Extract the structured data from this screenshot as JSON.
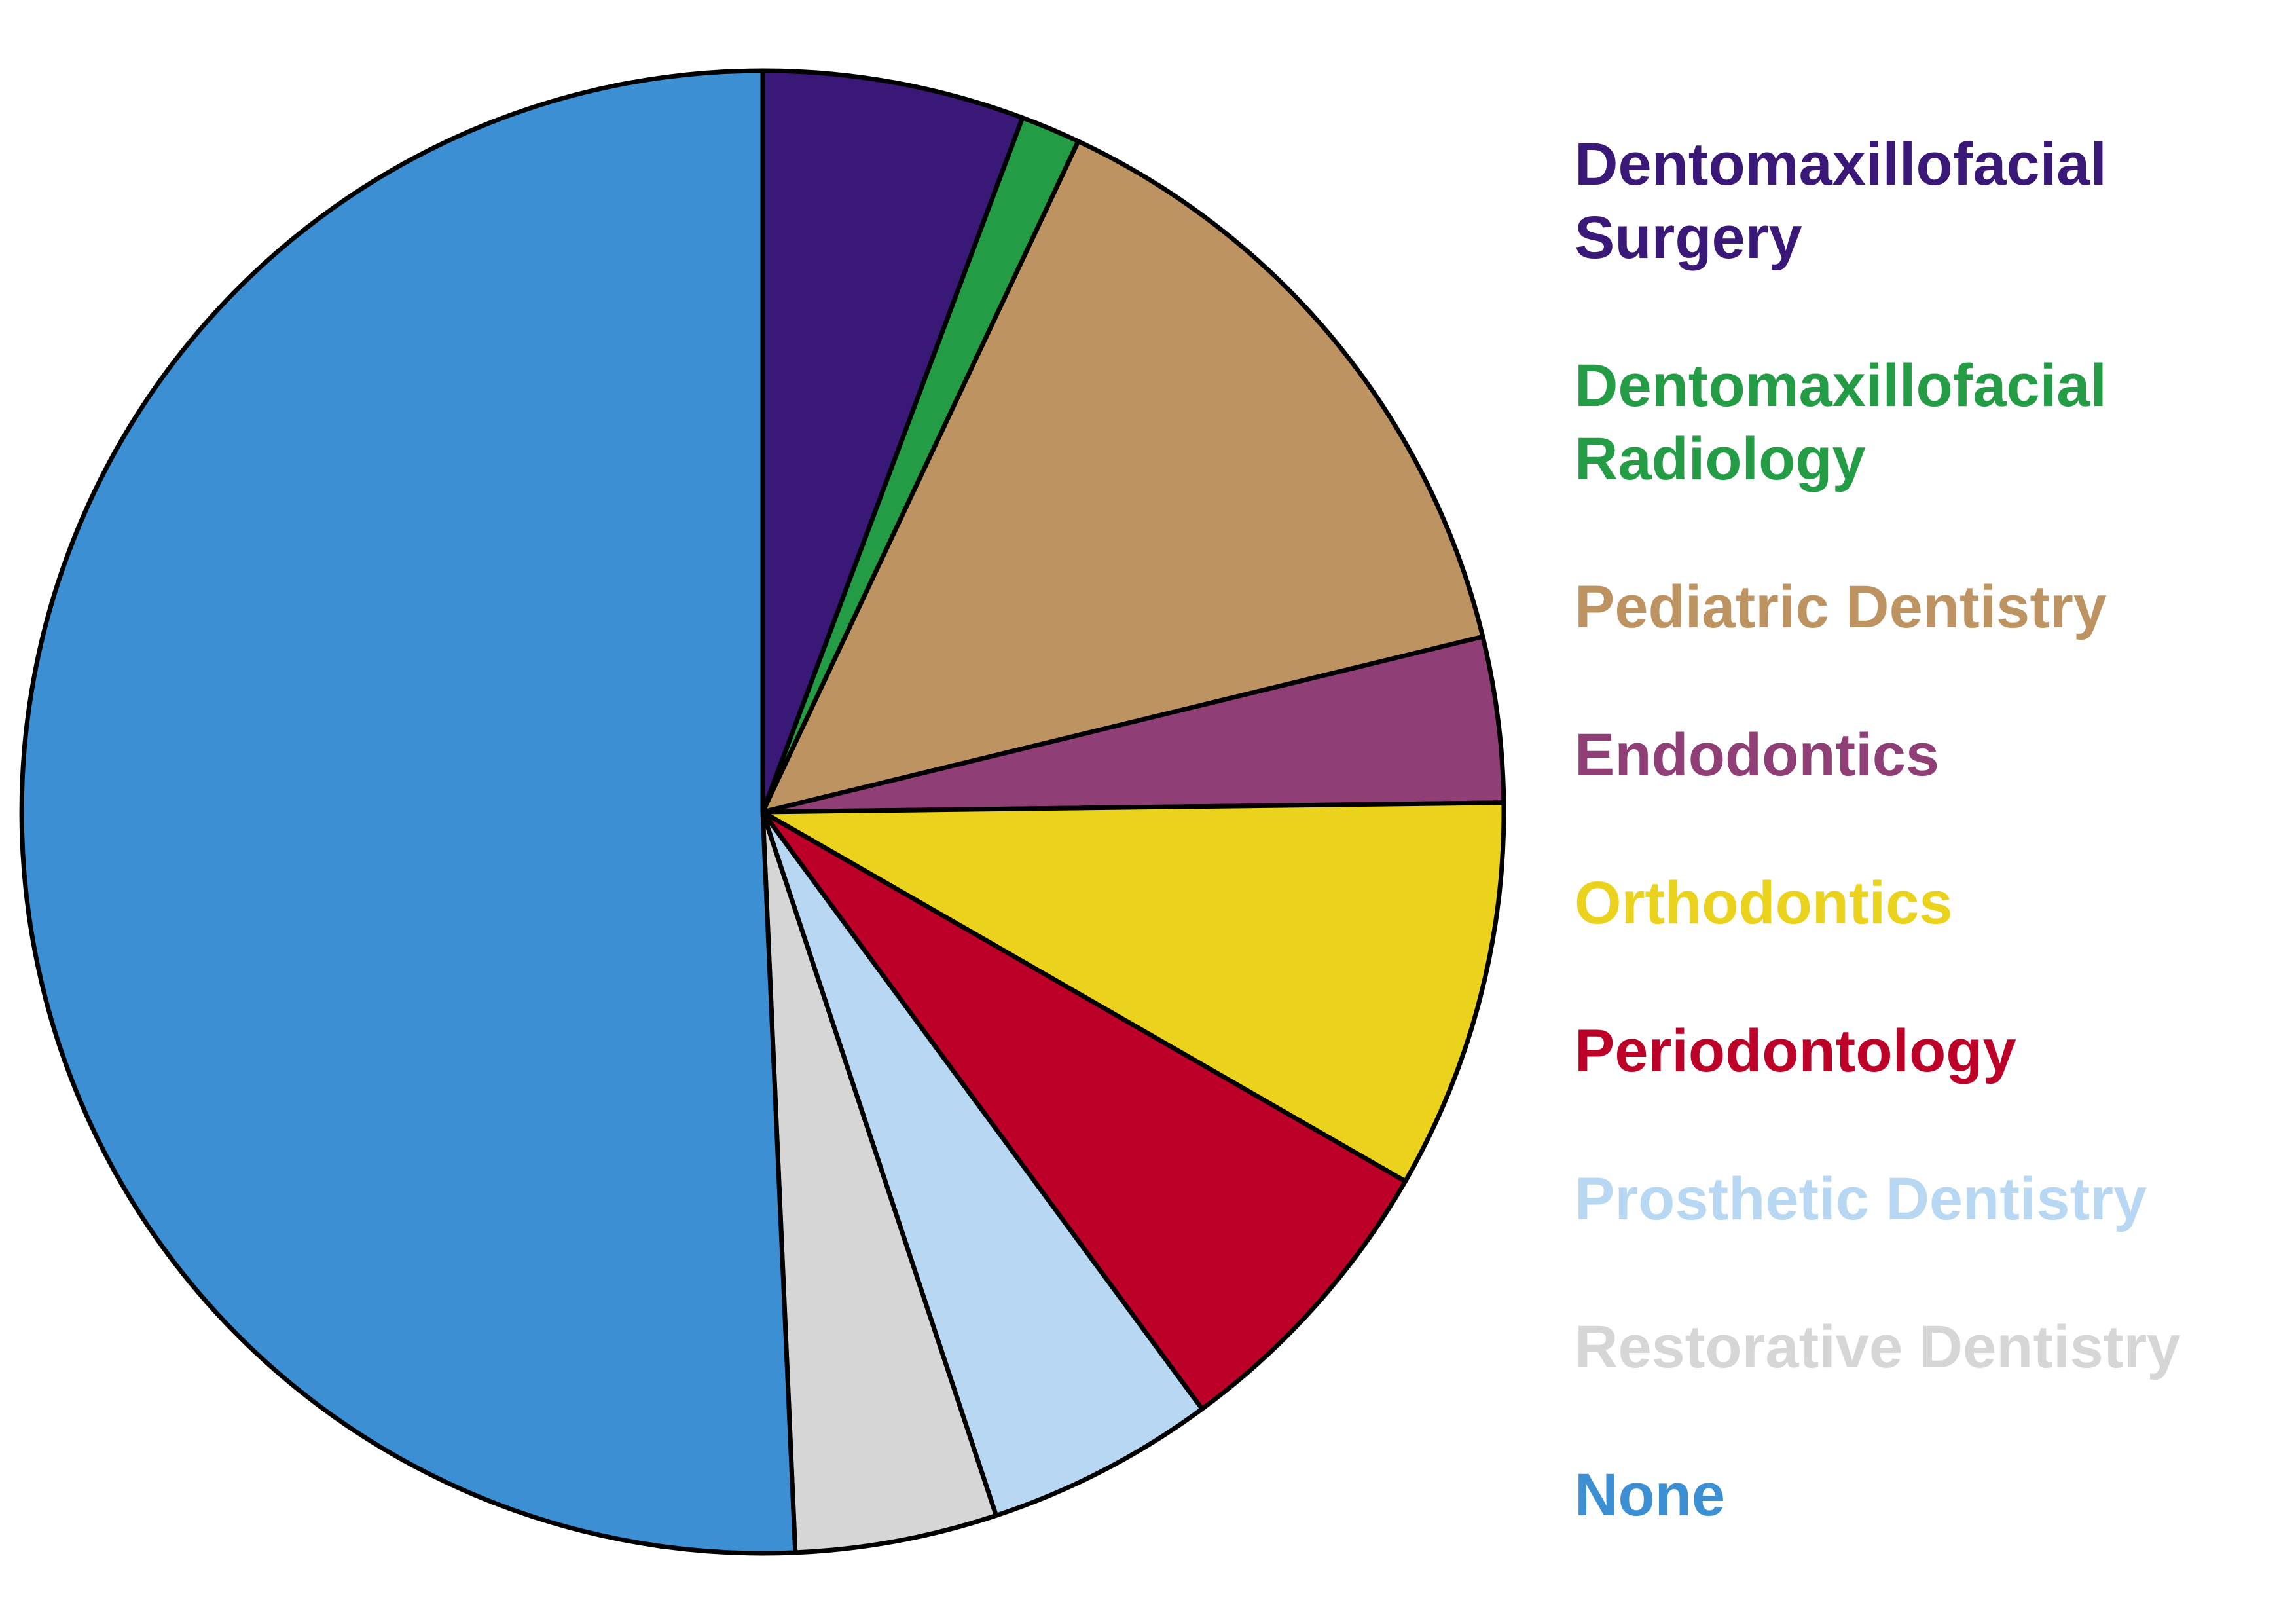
{
  "chart_data": {
    "type": "pie",
    "title": "",
    "start_angle_deg": 0,
    "direction": "clockwise",
    "legend_position": "right",
    "slices": [
      {
        "label": "Dentomaxillofacial Surgery",
        "value": 5.7,
        "color": "#3a1877",
        "legend_lines": [
          "Dentomaxillofacial",
          "Surgery"
        ]
      },
      {
        "label": "Dentomaxillofacial Radiology",
        "value": 1.3,
        "color": "#239c45",
        "legend_lines": [
          "Dentomaxillofacial",
          "Radiology"
        ]
      },
      {
        "label": "Pediatric Dentistry",
        "value": 14.2,
        "color": "#bd9461",
        "legend_lines": [
          "Pediatric Dentistry"
        ]
      },
      {
        "label": "Endodontics",
        "value": 3.6,
        "color": "#8f3e76",
        "legend_lines": [
          "Endodontics"
        ]
      },
      {
        "label": "Orthodontics",
        "value": 8.5,
        "color": "#ead21d",
        "legend_lines": [
          "Orthodontics"
        ]
      },
      {
        "label": "Periodontology",
        "value": 6.6,
        "color": "#bc0027",
        "legend_lines": [
          "Periodontology"
        ]
      },
      {
        "label": "Prosthetic Dentistry",
        "value": 5.0,
        "color": "#b7d7f2",
        "legend_lines": [
          "Prosthetic Dentistry"
        ]
      },
      {
        "label": "Restorative Dentistry",
        "value": 4.4,
        "color": "#d6d6d6",
        "legend_lines": [
          "Restorative Dentistry"
        ]
      },
      {
        "label": "None",
        "value": 50.7,
        "color": "#3c8fd3",
        "legend_lines": [
          "None"
        ]
      }
    ]
  }
}
